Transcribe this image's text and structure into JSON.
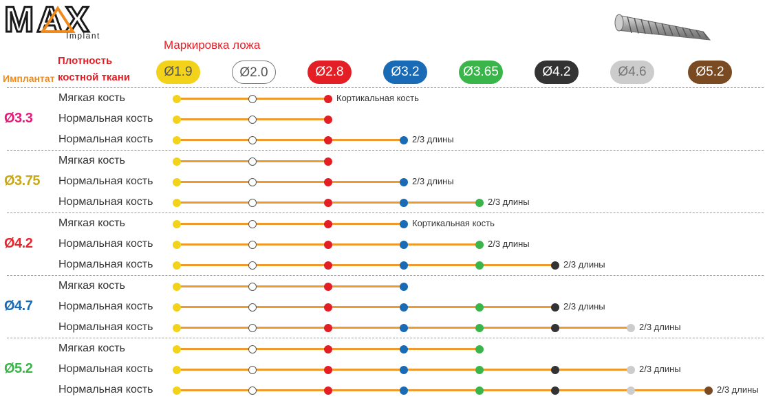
{
  "header": {
    "logo_text": "MAX",
    "logo_sub": "Implant",
    "title": "Маркировка ложа",
    "col_implant": "Имплантат",
    "col_density_line1": "Плотность",
    "col_density_line2": "костной ткани"
  },
  "drills": [
    {
      "label": "Ø1.9",
      "color": "#f2d21a"
    },
    {
      "label": "Ø2.0",
      "color": "#ffffff"
    },
    {
      "label": "Ø2.8",
      "color": "#e31e24"
    },
    {
      "label": "Ø3.2",
      "color": "#1a6bb5"
    },
    {
      "label": "Ø3.65",
      "color": "#3ab54a"
    },
    {
      "label": "Ø4.2",
      "color": "#333333"
    },
    {
      "label": "Ø4.6",
      "color": "#cccccc"
    },
    {
      "label": "Ø5.2",
      "color": "#7a4a22"
    }
  ],
  "groups": [
    {
      "label": "Ø3.3",
      "color": "#e6197a",
      "rows": [
        {
          "label": "Мягкая кость",
          "drills": 3,
          "note": "Кортикальная кость"
        },
        {
          "label": "Нормальная кость",
          "drills": 3,
          "note": ""
        },
        {
          "label": "Нормальная кость",
          "drills": 4,
          "note": "2/3 длины"
        }
      ]
    },
    {
      "label": "Ø3.75",
      "color": "#c9a814",
      "rows": [
        {
          "label": "Мягкая кость",
          "drills": 3,
          "note": ""
        },
        {
          "label": "Нормальная кость",
          "drills": 4,
          "note": "2/3 длины"
        },
        {
          "label": "Нормальная кость",
          "drills": 5,
          "note": "2/3 длины"
        }
      ]
    },
    {
      "label": "Ø4.2",
      "color": "#e8262b",
      "rows": [
        {
          "label": "Мягкая кость",
          "drills": 4,
          "note": "Кортикальная кость"
        },
        {
          "label": "Нормальная кость",
          "drills": 5,
          "note": "2/3 длины"
        },
        {
          "label": "Нормальная кость",
          "drills": 6,
          "note": "2/3 длины"
        }
      ]
    },
    {
      "label": "Ø4.7",
      "color": "#1a6bb5",
      "rows": [
        {
          "label": "Мягкая кость",
          "drills": 4,
          "note": ""
        },
        {
          "label": "Нормальная кость",
          "drills": 6,
          "note": "2/3 длины"
        },
        {
          "label": "Нормальная кость",
          "drills": 7,
          "note": "2/3 длины"
        }
      ]
    },
    {
      "label": "Ø5.2",
      "color": "#3ab54a",
      "rows": [
        {
          "label": "Мягкая кость",
          "drills": 5,
          "note": ""
        },
        {
          "label": "Нормальная кость",
          "drills": 7,
          "note": "2/3 длины"
        },
        {
          "label": "Нормальная кость",
          "drills": 8,
          "note": "2/3 длины"
        }
      ]
    }
  ],
  "colors": {
    "line": "#ef9a2e",
    "header_orange": "#f08a1c",
    "header_red": "#e31e24"
  }
}
